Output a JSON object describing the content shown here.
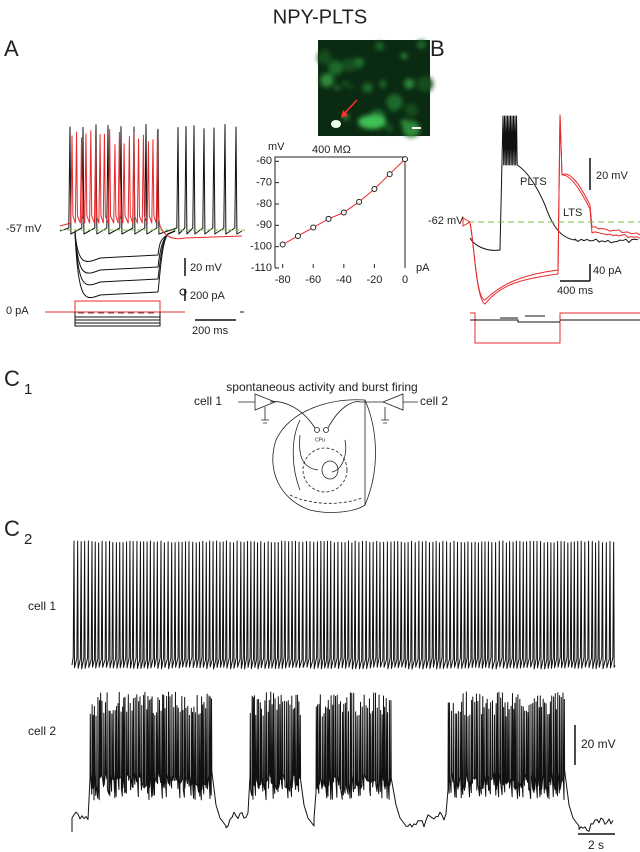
{
  "title": "NPY-PLTS",
  "panel_a": {
    "label": "A",
    "rest_potential": "-57 mV",
    "voltage_scale": "20 mV",
    "current_scale": "200 pA",
    "zero_current": "0 pA",
    "time_scale": "200 ms"
  },
  "iv_plot": {
    "type": "line",
    "y_label": "mV",
    "x_label": "pA",
    "annotation": "400 MΩ",
    "x": [
      -80,
      -70,
      -60,
      -50,
      -40,
      -30,
      -20,
      -10,
      0
    ],
    "values": [
      -99,
      -95,
      -91,
      -87,
      -84,
      -79,
      -73,
      -66,
      -59
    ],
    "color": "#e8292b",
    "xlim": [
      -85,
      0
    ],
    "ylim": [
      -110,
      -58
    ],
    "xticks": [
      -80,
      -60,
      -40,
      -20,
      0
    ],
    "yticks": [
      -60,
      -70,
      -80,
      -90,
      -100,
      -110
    ]
  },
  "panel_b": {
    "label": "B",
    "rest_potential": "-62 mV",
    "plts_label": "PLTS",
    "lts_label": "LTS",
    "voltage_scale": "20 mV",
    "current_scale": "40 pA",
    "time_scale": "400 ms"
  },
  "panel_c1": {
    "label": "C",
    "subscript": "1",
    "caption": "spontaneous activity and burst firing",
    "region_label": "CPu",
    "left_cell": "cell 1",
    "right_cell": "cell 2"
  },
  "panel_c2": {
    "label": "C",
    "subscript": "2",
    "trace_1": "cell 1",
    "trace_2": "cell 2",
    "voltage_scale": "20 mV",
    "time_scale": "2 s"
  }
}
